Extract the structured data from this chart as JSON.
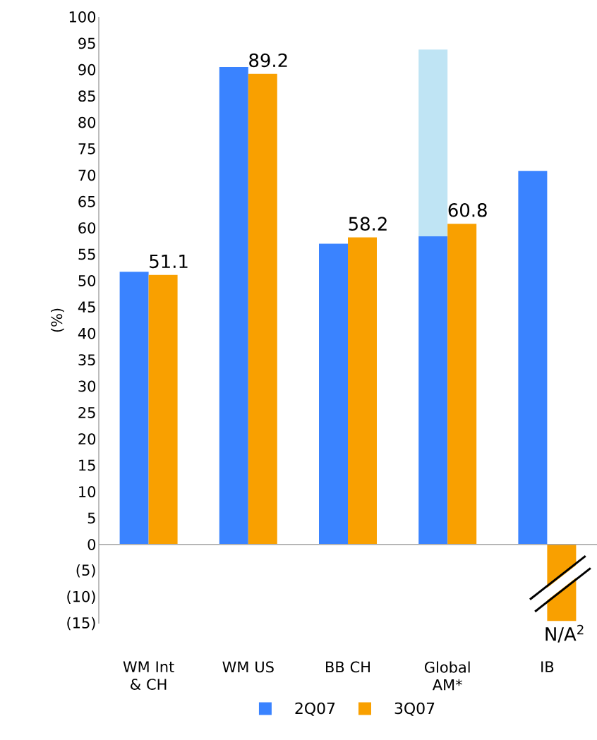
{
  "chart_data": {
    "type": "bar",
    "ylabel": "(%)",
    "categories": [
      "WM Int & CH",
      "WM US",
      "BB CH",
      "Global AM*",
      "IB"
    ],
    "series": [
      {
        "name": "2Q07",
        "color": "#3a83ff",
        "values": [
          51.7,
          90.5,
          57.0,
          58.4,
          70.8
        ]
      },
      {
        "name": "3Q07",
        "color": "#f9a000",
        "values": [
          51.1,
          89.2,
          58.2,
          60.8,
          -14.5
        ],
        "value_labels": [
          "51.1",
          "89.2",
          "58.2",
          "60.8",
          null
        ]
      },
      {
        "color": "#bfe4f4",
        "base": [
          null,
          null,
          null,
          58.4,
          null
        ],
        "values": [
          null,
          null,
          null,
          35.4,
          null
        ]
      }
    ],
    "ylim": [
      -15,
      100
    ],
    "yticks": [
      {
        "value": -15,
        "label": "(15)"
      },
      {
        "value": -10,
        "label": "(10)"
      },
      {
        "value": -5,
        "label": "(5)"
      },
      0,
      5,
      10,
      15,
      20,
      25,
      30,
      35,
      40,
      45,
      50,
      55,
      60,
      65,
      70,
      75,
      80,
      85,
      90,
      95,
      100
    ],
    "annotations": [
      {
        "text": "N/A$^{2}$",
        "x": "IB",
        "y": -14.5
      }
    ],
    "legend": "bottom"
  }
}
